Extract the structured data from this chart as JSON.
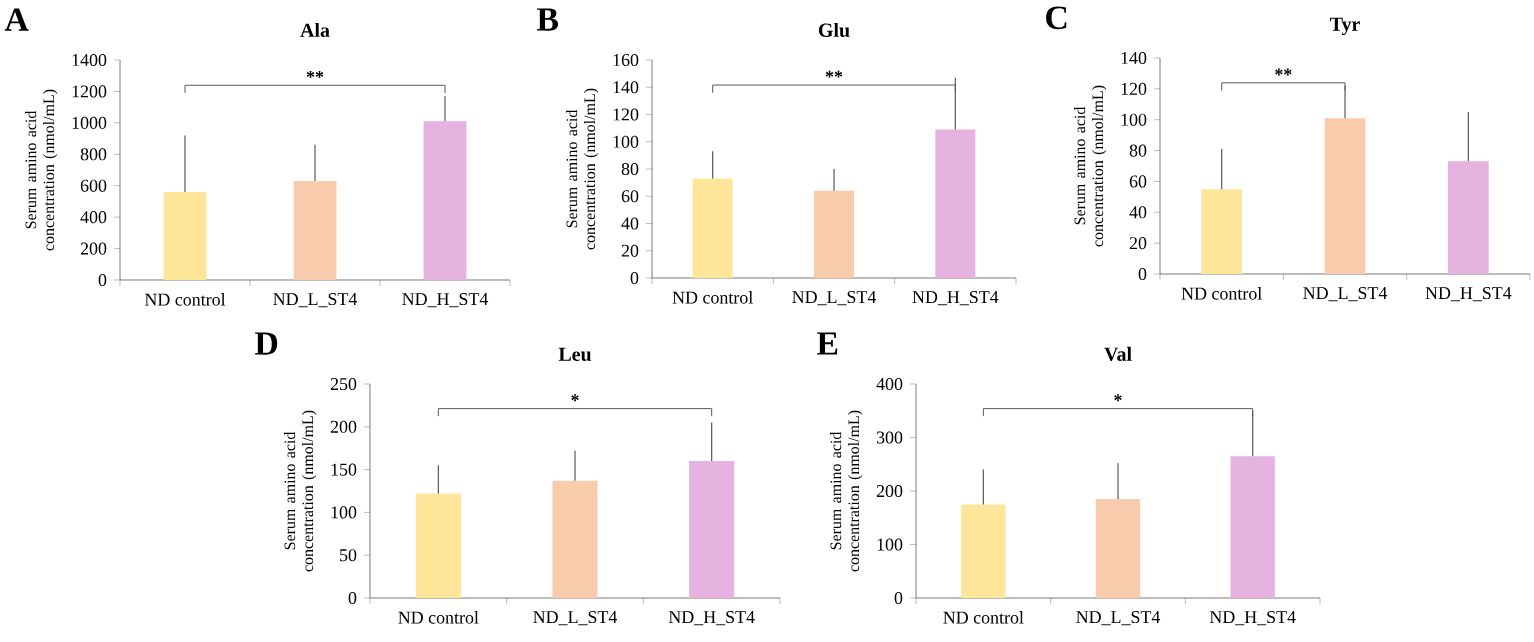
{
  "chart_data": [
    {
      "type": "bar",
      "title": "Ala",
      "ylabel": "Serum amino acid concentration (nmol/mL)",
      "categories": [
        "ND control",
        "ND_L_ST4",
        "ND_H_ST4"
      ],
      "values": [
        560,
        630,
        1010
      ],
      "errors": [
        360,
        230,
        160
      ],
      "colors": [
        "#fde599",
        "#f8cbad",
        "#e6b3e0"
      ],
      "ylim": [
        0,
        1400
      ],
      "yticks": [
        0,
        200,
        400,
        600,
        800,
        1000,
        1200,
        1400
      ],
      "annotations": [
        "A",
        "**"
      ]
    },
    {
      "type": "bar",
      "title": "Glu",
      "ylabel": "Serum amino acid concentration (nmol/mL)",
      "categories": [
        "ND control",
        "ND_L_ST4",
        "ND_H_ST4"
      ],
      "values": [
        73,
        64,
        109
      ],
      "errors": [
        20,
        16,
        38
      ],
      "colors": [
        "#fde599",
        "#f8cbad",
        "#e6b3e0"
      ],
      "ylim": [
        0,
        160
      ],
      "yticks": [
        0,
        20,
        40,
        60,
        80,
        100,
        120,
        140,
        160
      ],
      "annotations": [
        "B",
        "**"
      ]
    },
    {
      "type": "bar",
      "title": "Tyr",
      "ylabel": "Serum amino acid concentration (nmol/mL)",
      "categories": [
        "ND control",
        "ND_L_ST4",
        "ND_H_ST4"
      ],
      "values": [
        55,
        101,
        73
      ],
      "errors": [
        26,
        21,
        32
      ],
      "colors": [
        "#fde599",
        "#f8cbad",
        "#e6b3e0"
      ],
      "ylim": [
        0,
        140
      ],
      "yticks": [
        0,
        20,
        40,
        60,
        80,
        100,
        120,
        140
      ],
      "annotations": [
        "C",
        "**"
      ]
    },
    {
      "type": "bar",
      "title": "Leu",
      "ylabel": "Serum amino acid concentration (nmol/mL)",
      "categories": [
        "ND control",
        "ND_L_ST4",
        "ND_H_ST4"
      ],
      "values": [
        122,
        137,
        160
      ],
      "errors": [
        33,
        35,
        45
      ],
      "colors": [
        "#fde599",
        "#f8cbad",
        "#e6b3e0"
      ],
      "ylim": [
        0,
        250
      ],
      "yticks": [
        0,
        50,
        100,
        150,
        200,
        250
      ],
      "annotations": [
        "D",
        "*"
      ]
    },
    {
      "type": "bar",
      "title": "Val",
      "ylabel": "Serum amino acid concentration (nmol/mL)",
      "categories": [
        "ND control",
        "ND_L_ST4",
        "ND_H_ST4"
      ],
      "values": [
        175,
        185,
        265
      ],
      "errors": [
        65,
        67,
        85
      ],
      "colors": [
        "#fde599",
        "#f8cbad",
        "#e6b3e0"
      ],
      "ylim": [
        0,
        400
      ],
      "yticks": [
        0,
        100,
        200,
        300,
        400
      ],
      "annotations": [
        "E",
        "*"
      ]
    }
  ]
}
